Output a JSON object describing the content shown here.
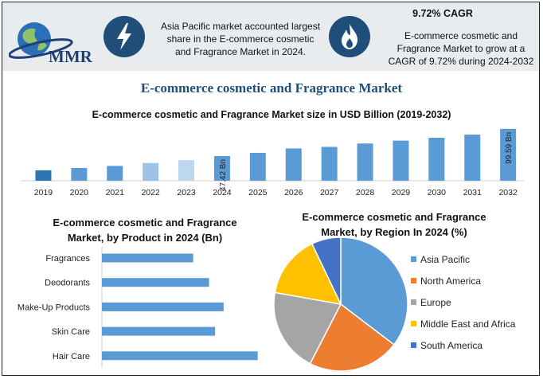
{
  "brand": {
    "logo_text": "MMR"
  },
  "header": {
    "region_text": "Asia Pacific market accounted largest share in the E-commerce cosmetic and Fragrance Market in 2024.",
    "region_lines": [
      "Asia Pacific market accounted largest",
      "share in the E-commerce cosmetic",
      "and Fragrance Market in 2024."
    ],
    "cagr_title": "9.72% CAGR",
    "cagr_text": "E-commerce cosmetic and Fragrance Market to grow at a CAGR of 9.72% during 2024-2032",
    "cagr_lines": [
      "E-commerce cosmetic and",
      "Fragrance Market to grow at a",
      "CAGR of 9.72% during 2024-2032"
    ],
    "icons": [
      "lightning-bolt-icon",
      "flame-icon"
    ]
  },
  "main_title": "E-commerce cosmetic and Fragrance Market",
  "colors": {
    "bar_primary": "#5b9bd5",
    "bar_lighter": "#9dc3e6",
    "bar_lightest": "#bdd7ee",
    "bar_dark": "#2e75b6",
    "icon_circle": "#1f4e79",
    "title_blue": "#1f4e79"
  },
  "chart_data": [
    {
      "type": "bar",
      "title": "E-commerce cosmetic and Fragrance Market size in USD Billion (2019-2032)",
      "categories": [
        "2019",
        "2020",
        "2021",
        "2022",
        "2023",
        "2024",
        "2025",
        "2026",
        "2027",
        "2028",
        "2029",
        "2030",
        "2031",
        "2032"
      ],
      "values": [
        20.0,
        24.5,
        28.5,
        34.0,
        39.5,
        47.42,
        53.5,
        62.0,
        65.0,
        71.5,
        77.0,
        82.5,
        88.5,
        99.59
      ],
      "data_labels": {
        "2024": "47.42 Bn",
        "2032": "99.59 Bn"
      },
      "ylim": [
        0,
        110
      ]
    },
    {
      "type": "bar",
      "orientation": "horizontal",
      "title": "E-commerce cosmetic and Fragrance Market, by Product in 2024 (Bn)",
      "title_lines": [
        "E-commerce cosmetic and Fragrance",
        "Market, by Product in 2024 (Bn)"
      ],
      "categories": [
        "Fragrances",
        "Deodorants",
        "Make-Up Products",
        "Skin Care",
        "Hair Care"
      ],
      "values": [
        7.5,
        8.8,
        10.0,
        9.3,
        12.8
      ],
      "xlim": [
        0,
        14
      ]
    },
    {
      "type": "pie",
      "title": "E-commerce cosmetic and Fragrance Market, by Region In 2024 (%)",
      "title_lines": [
        "E-commerce cosmetic and Fragrance",
        "Market, by Region In 2024 (%)"
      ],
      "labels": [
        "Asia Pacific",
        "North America",
        "Europe",
        "Middle East and Africa",
        "South America"
      ],
      "values": [
        35,
        22,
        20,
        15,
        7
      ],
      "colors": [
        "#5b9bd5",
        "#ed7d31",
        "#a5a5a5",
        "#ffc000",
        "#4472c4"
      ],
      "legend_position": "right"
    }
  ]
}
